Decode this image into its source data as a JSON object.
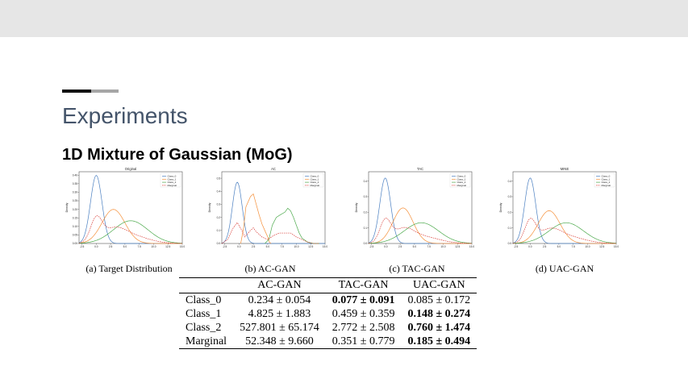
{
  "slide": {
    "title": "Experiments",
    "subtitle": "1D Mixture of Gaussian (MoG)"
  },
  "colors": {
    "class0": "#4a7fc1",
    "class1": "#f5903a",
    "class2": "#4daa4d",
    "marginal": "#d9403a"
  },
  "legend_labels": [
    "Class_0",
    "Class_1",
    "Class_2",
    "Marginal"
  ],
  "panels": [
    {
      "title": "Original",
      "caption": "(a) Target Distribution",
      "yticks": [
        "0.40",
        "0.35",
        "0.30",
        "0.25",
        "0.20",
        "0.15",
        "0.10",
        "0.05",
        "0.00"
      ]
    },
    {
      "title": "AC",
      "caption": "(b) AC-GAN",
      "yticks": [
        "0.5",
        "0.4",
        "0.3",
        "0.2",
        "0.1",
        "0.0"
      ]
    },
    {
      "title": "TAC",
      "caption": "(c) TAC-GAN",
      "yticks": [
        "0.4",
        "0.3",
        "0.2",
        "0.1",
        "0.0"
      ]
    },
    {
      "title": "MINE",
      "caption": "(d) UAC-GAN",
      "yticks": [
        "0.4",
        "0.3",
        "0.2",
        "0.1",
        "0.0"
      ]
    }
  ],
  "xticks": [
    "-2.5",
    "0.0",
    "2.5",
    "5.0",
    "7.5",
    "10.0",
    "12.5",
    "15.0"
  ],
  "ylabel": "Density",
  "table": {
    "headers": [
      "",
      "AC-GAN",
      "TAC-GAN",
      "UAC-GAN"
    ],
    "rows": [
      {
        "label": "Class_0",
        "cells": [
          "0.234 ± 0.054",
          "0.077 ± 0.091",
          "0.085 ± 0.172"
        ],
        "bold": [
          false,
          true,
          false
        ]
      },
      {
        "label": "Class_1",
        "cells": [
          "4.825 ± 1.883",
          "0.459 ± 0.359",
          "0.148 ± 0.274"
        ],
        "bold": [
          false,
          false,
          true
        ]
      },
      {
        "label": "Class_2",
        "cells": [
          "527.801 ± 65.174",
          "2.772 ± 2.508",
          "0.760 ± 1.474"
        ],
        "bold": [
          false,
          false,
          true
        ]
      },
      {
        "label": "Marginal",
        "cells": [
          "52.348 ± 9.660",
          "0.351 ± 0.779",
          "0.185 ± 0.494"
        ],
        "bold": [
          false,
          false,
          true
        ]
      }
    ]
  },
  "chart_data": [
    {
      "type": "line",
      "title": "Original",
      "ylabel": "Density",
      "xlim": [
        -3,
        15
      ],
      "ylim": [
        0,
        0.42
      ],
      "series": [
        {
          "name": "Class_0",
          "kind": "gauss",
          "mu": 0.0,
          "sigma": 1.0
        },
        {
          "name": "Class_1",
          "kind": "gauss",
          "mu": 3.0,
          "sigma": 2.0
        },
        {
          "name": "Class_2",
          "kind": "gauss",
          "mu": 6.0,
          "sigma": 3.0
        },
        {
          "name": "Marginal",
          "kind": "mixture"
        }
      ]
    },
    {
      "type": "line",
      "title": "AC",
      "ylabel": "Density",
      "xlim": [
        -3,
        15
      ],
      "ylim": [
        0,
        0.55
      ],
      "series": [
        {
          "name": "Class_0",
          "kind": "gauss",
          "mu": -0.3,
          "sigma": 0.85
        },
        {
          "name": "Class_1",
          "kind": "points",
          "x": [
            0.3,
            0.8,
            1.2,
            1.6,
            2.0,
            2.5,
            3.0,
            3.5,
            4.0,
            4.5,
            5.0,
            5.3,
            5.6
          ],
          "y": [
            0.0,
            0.12,
            0.28,
            0.32,
            0.36,
            0.38,
            0.3,
            0.22,
            0.15,
            0.1,
            0.05,
            0.01,
            0.0
          ]
        },
        {
          "name": "Class_2",
          "kind": "points",
          "x": [
            4.5,
            5.2,
            5.8,
            6.5,
            7.2,
            8.0,
            8.5,
            9.0,
            9.5,
            10.0,
            10.5,
            11.0,
            12.0,
            13.0,
            14.0
          ],
          "y": [
            0.0,
            0.03,
            0.14,
            0.2,
            0.22,
            0.24,
            0.27,
            0.25,
            0.2,
            0.14,
            0.08,
            0.04,
            0.01,
            0.0,
            0.0
          ]
        },
        {
          "name": "Marginal",
          "kind": "points",
          "x": [
            -3,
            -2,
            -1,
            -0.3,
            0.5,
            1,
            2,
            2.5,
            3,
            4,
            5,
            6,
            7,
            8,
            9,
            10,
            11,
            12,
            13,
            14
          ],
          "y": [
            0.0,
            0.03,
            0.12,
            0.16,
            0.1,
            0.05,
            0.1,
            0.12,
            0.09,
            0.05,
            0.03,
            0.06,
            0.08,
            0.08,
            0.08,
            0.05,
            0.03,
            0.01,
            0.0,
            0.0
          ]
        }
      ]
    },
    {
      "type": "line",
      "title": "TAC",
      "ylabel": "Density",
      "xlim": [
        -3,
        15
      ],
      "ylim": [
        0,
        0.46
      ],
      "series": [
        {
          "name": "Class_0",
          "kind": "gauss",
          "mu": -0.1,
          "sigma": 0.95
        },
        {
          "name": "Class_1",
          "kind": "gauss",
          "mu": 3.0,
          "sigma": 1.75
        },
        {
          "name": "Class_2",
          "kind": "gauss",
          "mu": 6.2,
          "sigma": 3.0
        },
        {
          "name": "Marginal",
          "kind": "mixture"
        }
      ]
    },
    {
      "type": "line",
      "title": "MINE",
      "ylabel": "Density",
      "xlim": [
        -3,
        15
      ],
      "ylim": [
        0,
        0.46
      ],
      "series": [
        {
          "name": "Class_0",
          "kind": "gauss",
          "mu": 0.0,
          "sigma": 0.95
        },
        {
          "name": "Class_1",
          "kind": "gauss",
          "mu": 3.3,
          "sigma": 1.9
        },
        {
          "name": "Class_2",
          "kind": "gauss",
          "mu": 6.3,
          "sigma": 3.0
        },
        {
          "name": "Marginal",
          "kind": "mixture"
        }
      ]
    }
  ]
}
